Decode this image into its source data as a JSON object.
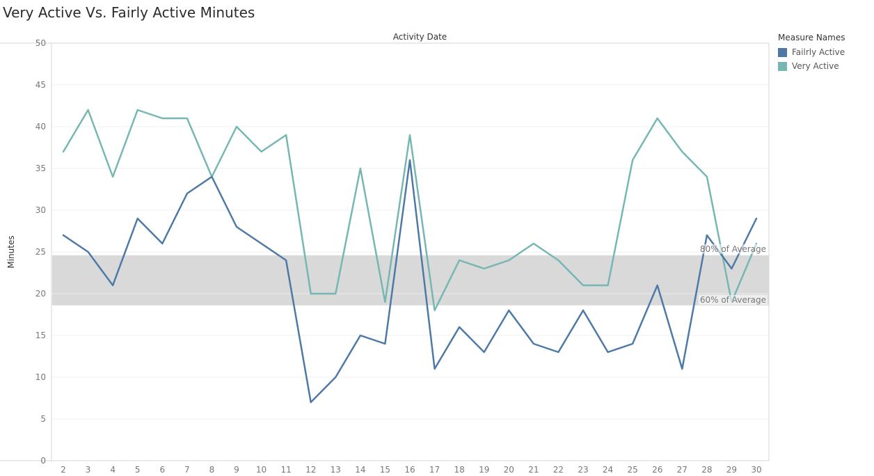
{
  "title": "Very Active Vs. Fairly Active Minutes",
  "chart_data": {
    "type": "line",
    "title": "Very Active Vs. Fairly Active Minutes",
    "xlabel": "Activity Date",
    "ylabel": "Minutes",
    "x": [
      2,
      3,
      4,
      5,
      6,
      7,
      8,
      9,
      10,
      11,
      12,
      13,
      14,
      15,
      16,
      17,
      18,
      19,
      20,
      21,
      22,
      23,
      24,
      25,
      26,
      27,
      28,
      29,
      30
    ],
    "ylim": [
      0,
      50
    ],
    "yticks": [
      0,
      5,
      10,
      15,
      20,
      25,
      30,
      35,
      40,
      45,
      50
    ],
    "grid": true,
    "legend_position": "right",
    "series": [
      {
        "name": "Failrly Active",
        "color": "#4e79a7",
        "values": [
          27,
          25,
          21,
          29,
          26,
          32,
          34,
          28,
          26,
          24,
          7,
          10,
          15,
          14,
          36,
          11,
          16,
          13,
          18,
          14,
          13,
          18,
          13,
          14,
          21,
          11,
          27,
          23,
          29
        ]
      },
      {
        "name": "Very Active",
        "color": "#76b7b2",
        "values": [
          37,
          42,
          34,
          42,
          41,
          41,
          34,
          40,
          37,
          39,
          20,
          20,
          35,
          19,
          39,
          18,
          24,
          23,
          24,
          26,
          24,
          21,
          21,
          36,
          41,
          37,
          34,
          19,
          26
        ]
      }
    ],
    "reference_band": {
      "low": 18.6,
      "high": 24.6,
      "color": "#d9d9d9"
    },
    "annotations": [
      {
        "text": "80% of Average",
        "y": 24.6
      },
      {
        "text": "60% of Average",
        "y": 18.6
      }
    ]
  },
  "legend": {
    "title": "Measure Names",
    "items": [
      {
        "label": "Failrly Active",
        "color": "#4e79a7"
      },
      {
        "label": "Very Active",
        "color": "#76b7b2"
      }
    ]
  }
}
